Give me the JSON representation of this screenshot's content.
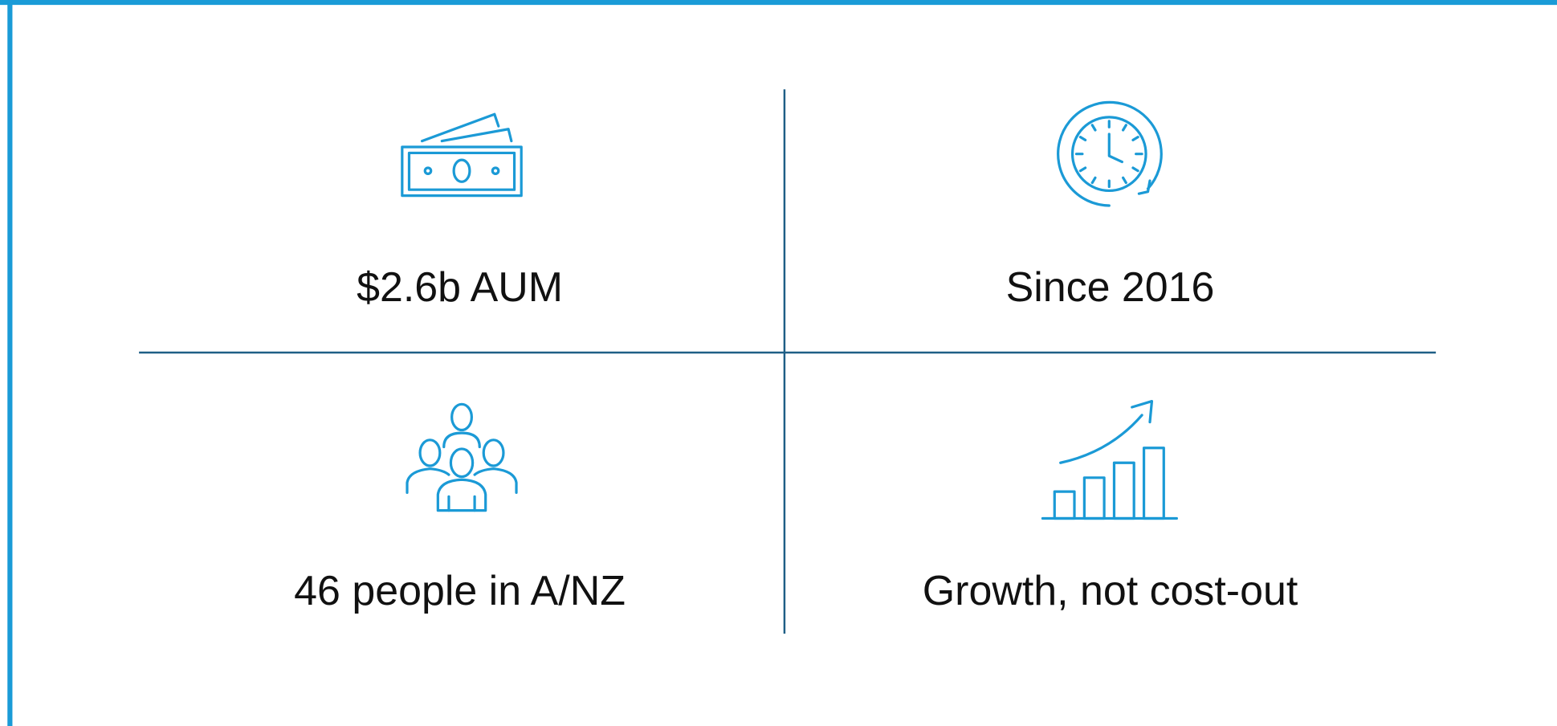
{
  "items": [
    {
      "label": "$2.6b AUM"
    },
    {
      "label": "Since 2016"
    },
    {
      "label": "46 people in A/NZ"
    },
    {
      "label": "Growth, not cost-out"
    }
  ]
}
